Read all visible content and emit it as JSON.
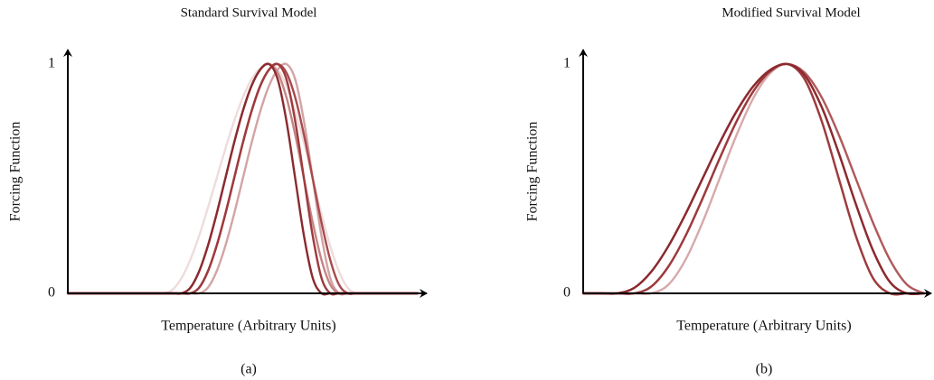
{
  "chart_data": [
    {
      "type": "line",
      "title": "Standard Survival Model",
      "ylabel": "Forcing Function",
      "xlabel": "Temperature (Arbitrary Units)",
      "caption": "(a)",
      "xlim": [
        0,
        100
      ],
      "ylim": [
        0,
        1
      ],
      "yticks": [
        0,
        1
      ],
      "x": [
        0,
        25,
        27.5,
        30,
        32.5,
        35,
        37.5,
        40,
        42.5,
        45,
        47.5,
        50,
        52.5,
        55,
        57.5,
        60,
        62.5,
        65,
        67.5,
        70,
        72.5,
        75,
        77.5,
        80,
        82.5,
        85,
        100
      ],
      "series": [
        {
          "color": "#eedcdc",
          "values": [
            0,
            0,
            0,
            0.017,
            0.067,
            0.146,
            0.25,
            0.371,
            0.5,
            0.629,
            0.75,
            0.854,
            0.933,
            0.983,
            1,
            0.976,
            0.905,
            0.794,
            0.655,
            0.5,
            0.345,
            0.206,
            0.095,
            0.024,
            0,
            0,
            0
          ]
        },
        {
          "color": "#d3a3a4",
          "values": [
            0,
            0,
            0,
            0,
            0,
            0,
            0,
            0.024,
            0.095,
            0.206,
            0.345,
            0.5,
            0.655,
            0.794,
            0.905,
            0.976,
            1,
            0.933,
            0.75,
            0.5,
            0.25,
            0.067,
            0,
            0,
            0,
            0,
            0
          ]
        },
        {
          "color": "#c48586",
          "values": [
            0,
            0,
            0,
            0,
            0,
            0.024,
            0.095,
            0.206,
            0.345,
            0.5,
            0.655,
            0.794,
            0.905,
            0.976,
            1,
            0.962,
            0.854,
            0.691,
            0.5,
            0.309,
            0.146,
            0.038,
            0,
            0,
            0,
            0,
            0
          ]
        },
        {
          "color": "#a84a4d",
          "values": [
            0,
            0,
            0,
            0,
            0,
            0,
            0.024,
            0.095,
            0.206,
            0.345,
            0.5,
            0.655,
            0.794,
            0.905,
            0.976,
            1,
            0.962,
            0.854,
            0.691,
            0.5,
            0.309,
            0.146,
            0.038,
            0,
            0,
            0,
            0
          ]
        },
        {
          "color": "#9e3a3d",
          "values": [
            0,
            0,
            0,
            0,
            0,
            0,
            0.024,
            0.095,
            0.206,
            0.345,
            0.5,
            0.655,
            0.794,
            0.905,
            0.976,
            1,
            0.933,
            0.75,
            0.5,
            0.25,
            0.067,
            0,
            0,
            0,
            0,
            0,
            0
          ]
        },
        {
          "color": "#8b2a2e",
          "values": [
            0,
            0,
            0,
            0,
            0,
            0.024,
            0.095,
            0.206,
            0.345,
            0.5,
            0.655,
            0.794,
            0.905,
            0.976,
            1,
            0.933,
            0.75,
            0.5,
            0.25,
            0.067,
            0,
            0,
            0,
            0,
            0,
            0,
            0
          ]
        }
      ]
    },
    {
      "type": "line",
      "title": "Modified Survival Model",
      "ylabel": "Forcing Function",
      "xlabel": "Temperature (Arbitrary Units)",
      "caption": "(b)",
      "xlim": [
        0,
        100
      ],
      "ylim": [
        0,
        1
      ],
      "yticks": [
        0,
        1
      ],
      "x": [
        0,
        5,
        10,
        15,
        20,
        25,
        30,
        35,
        40,
        45,
        50,
        55,
        60,
        65,
        70,
        75,
        80,
        85,
        90,
        95,
        100
      ],
      "series": [
        {
          "color": "#eedcdc",
          "values": [
            0,
            0,
            0,
            0,
            0.03,
            0.117,
            0.25,
            0.413,
            0.587,
            0.75,
            0.883,
            0.97,
            1,
            0.962,
            0.854,
            0.691,
            0.5,
            0.309,
            0.146,
            0.038,
            0
          ]
        },
        {
          "color": "#d6a9aa",
          "values": [
            0,
            0,
            0,
            0,
            0,
            0.038,
            0.146,
            0.309,
            0.5,
            0.691,
            0.854,
            0.962,
            1,
            0.933,
            0.75,
            0.5,
            0.25,
            0.067,
            0,
            0,
            0
          ]
        },
        {
          "color": "#c98a8b",
          "values": [
            0,
            0,
            0,
            0,
            0.03,
            0.117,
            0.25,
            0.413,
            0.587,
            0.75,
            0.883,
            0.97,
            1,
            0.951,
            0.812,
            0.611,
            0.389,
            0.188,
            0.049,
            0,
            0
          ]
        },
        {
          "color": "#b0595b",
          "values": [
            0,
            0,
            0,
            0.024,
            0.095,
            0.206,
            0.345,
            0.5,
            0.655,
            0.794,
            0.905,
            0.976,
            1,
            0.962,
            0.854,
            0.691,
            0.5,
            0.309,
            0.146,
            0.038,
            0
          ]
        },
        {
          "color": "#9e3a3d",
          "values": [
            0,
            0,
            0,
            0,
            0.03,
            0.117,
            0.25,
            0.413,
            0.587,
            0.75,
            0.883,
            0.97,
            1,
            0.933,
            0.75,
            0.5,
            0.25,
            0.067,
            0,
            0,
            0
          ]
        },
        {
          "color": "#8b2a2e",
          "values": [
            0,
            0,
            0,
            0.024,
            0.095,
            0.206,
            0.345,
            0.5,
            0.655,
            0.794,
            0.905,
            0.976,
            1,
            0.951,
            0.812,
            0.611,
            0.389,
            0.188,
            0.049,
            0,
            0
          ]
        }
      ]
    }
  ]
}
